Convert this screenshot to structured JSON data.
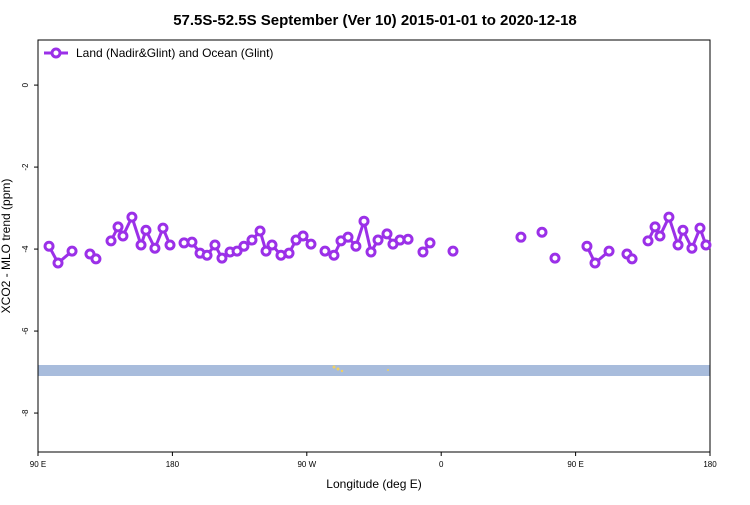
{
  "chart_data": {
    "type": "line",
    "title": "57.5S-52.5S September (Ver 10)   2015-01-01 to 2020-12-18",
    "x_label": "Longitude (deg E)",
    "y_label": "XCO2 - MLO trend (ppm)",
    "legend_position": "top-left",
    "xlim": [
      90,
      540
    ],
    "xticks": [
      {
        "value": 90,
        "label": "90 E"
      },
      {
        "value": 180,
        "label": "180"
      },
      {
        "value": 270,
        "label": "90 W"
      },
      {
        "value": 360,
        "label": "0"
      },
      {
        "value": 450,
        "label": "90 E"
      },
      {
        "value": 540,
        "label": "180"
      }
    ],
    "ylim": [
      -8.95,
      1.1
    ],
    "yticks": [
      0,
      -2,
      -4,
      -6,
      -8
    ],
    "series": [
      {
        "name": "Land (Nadir&Glint) and Ocean (Glint)",
        "color": "#9b30e8",
        "x": [
          97.4,
          103.4,
          112.8,
          null,
          124.8,
          128.8,
          null,
          138.9,
          143.6,
          146.9,
          152.9,
          159.0,
          162.3,
          168.3,
          173.7,
          178.4,
          null,
          187.8,
          193.1,
          198.5,
          203.2,
          208.5,
          213.2,
          218.6,
          223.3,
          227.9,
          233.3,
          238.7,
          242.7,
          246.7,
          252.7,
          258.1,
          262.8,
          267.5,
          272.8,
          null,
          282.2,
          288.2,
          292.9,
          297.6,
          302.9,
          308.3,
          313.0,
          317.7,
          323.7,
          327.7,
          332.4,
          337.8,
          null,
          347.8,
          352.5,
          null,
          367.9,
          null,
          413.4,
          null,
          427.5,
          null,
          436.2,
          null,
          457.6,
          463.0,
          472.4,
          null,
          484.4,
          487.8,
          null,
          498.5,
          503.2,
          506.5,
          512.5,
          518.6,
          521.9,
          527.9,
          533.3,
          537.3
        ],
        "values": [
          -3.93,
          -4.34,
          -4.05,
          null,
          -4.12,
          -4.24,
          null,
          -3.8,
          -3.46,
          -3.68,
          -3.22,
          -3.9,
          -3.54,
          -3.98,
          -3.49,
          -3.9,
          null,
          -3.85,
          -3.83,
          -4.1,
          -4.15,
          -3.9,
          -4.22,
          -4.07,
          -4.05,
          -3.93,
          -3.78,
          -3.56,
          -4.05,
          -3.9,
          -4.15,
          -4.1,
          -3.78,
          -3.68,
          -3.88,
          null,
          -4.05,
          -4.15,
          -3.8,
          -3.71,
          -3.93,
          -3.32,
          -4.07,
          -3.78,
          -3.63,
          -3.88,
          -3.78,
          -3.76,
          null,
          -4.07,
          -3.85,
          null,
          -4.05,
          null,
          -3.71,
          null,
          -3.59,
          null,
          -4.22,
          null,
          -3.93,
          -4.34,
          -4.05,
          null,
          -4.12,
          -4.24,
          null,
          -3.8,
          -3.46,
          -3.68,
          -3.22,
          -3.9,
          -3.54,
          -3.98,
          -3.49,
          -3.9
        ]
      }
    ]
  }
}
